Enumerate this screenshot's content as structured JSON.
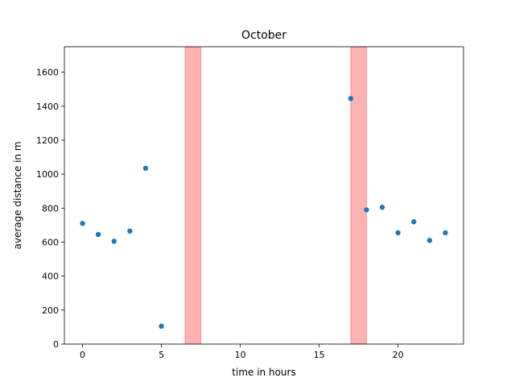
{
  "chart_data": {
    "type": "scatter",
    "title": "October",
    "xlabel": "time in hours",
    "ylabel": "average distance in m",
    "xlim": [
      -1.15,
      24.15
    ],
    "ylim": [
      0,
      1750
    ],
    "xticks": [
      0,
      5,
      10,
      15,
      20
    ],
    "yticks": [
      0,
      200,
      400,
      600,
      800,
      1000,
      1200,
      1400,
      1600
    ],
    "grid": false,
    "points": [
      {
        "x": 0,
        "y": 710
      },
      {
        "x": 1,
        "y": 645
      },
      {
        "x": 2,
        "y": 605
      },
      {
        "x": 3,
        "y": 665
      },
      {
        "x": 4,
        "y": 1035
      },
      {
        "x": 5,
        "y": 105
      },
      {
        "x": 17,
        "y": 1445
      },
      {
        "x": 18,
        "y": 790
      },
      {
        "x": 19,
        "y": 805
      },
      {
        "x": 20,
        "y": 655
      },
      {
        "x": 21,
        "y": 720
      },
      {
        "x": 22,
        "y": 610
      },
      {
        "x": 23,
        "y": 655
      }
    ],
    "shaded_bands": [
      {
        "x_start": 6.5,
        "x_end": 7.5
      },
      {
        "x_start": 17.0,
        "x_end": 18.0
      }
    ],
    "colors": {
      "points": "#1f77b4",
      "bands": "#ff0000",
      "axes": "#000000"
    }
  }
}
